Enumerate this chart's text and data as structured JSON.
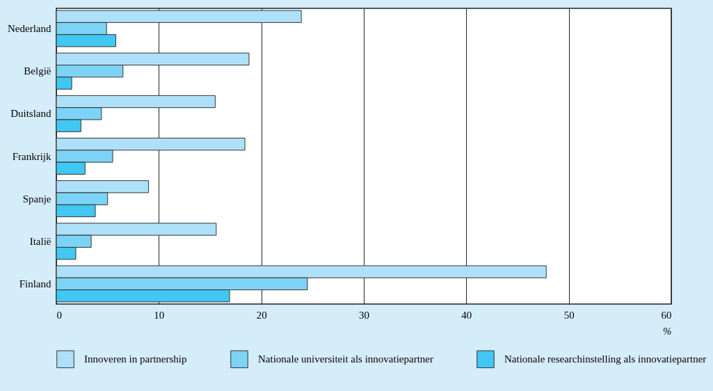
{
  "chart_data": {
    "type": "bar",
    "orientation": "horizontal",
    "xlabel": "%",
    "categories": [
      "Nederland",
      "België",
      "Duitsland",
      "Frankrijk",
      "Spanje",
      "Italië",
      "Finland"
    ],
    "series": [
      {
        "name": "Innoveren in partnership",
        "color": "#aee1f9",
        "values": [
          23.9,
          18.8,
          15.5,
          18.4,
          9.0,
          15.6,
          47.8
        ]
      },
      {
        "name": "Nationale universiteit als innovatiepartner",
        "color": "#7dd3f5",
        "values": [
          4.9,
          6.5,
          4.4,
          5.5,
          5.0,
          3.4,
          24.5
        ]
      },
      {
        "name": "Nationale researchinstelling als innovatiepartner",
        "color": "#41c8f2",
        "values": [
          5.8,
          1.5,
          2.4,
          2.8,
          3.8,
          1.9,
          16.9
        ]
      }
    ],
    "xlim": [
      0,
      60
    ],
    "xticks": [
      0,
      10,
      20,
      30,
      40,
      50,
      60
    ],
    "grid": "x",
    "legend": "bottom"
  }
}
